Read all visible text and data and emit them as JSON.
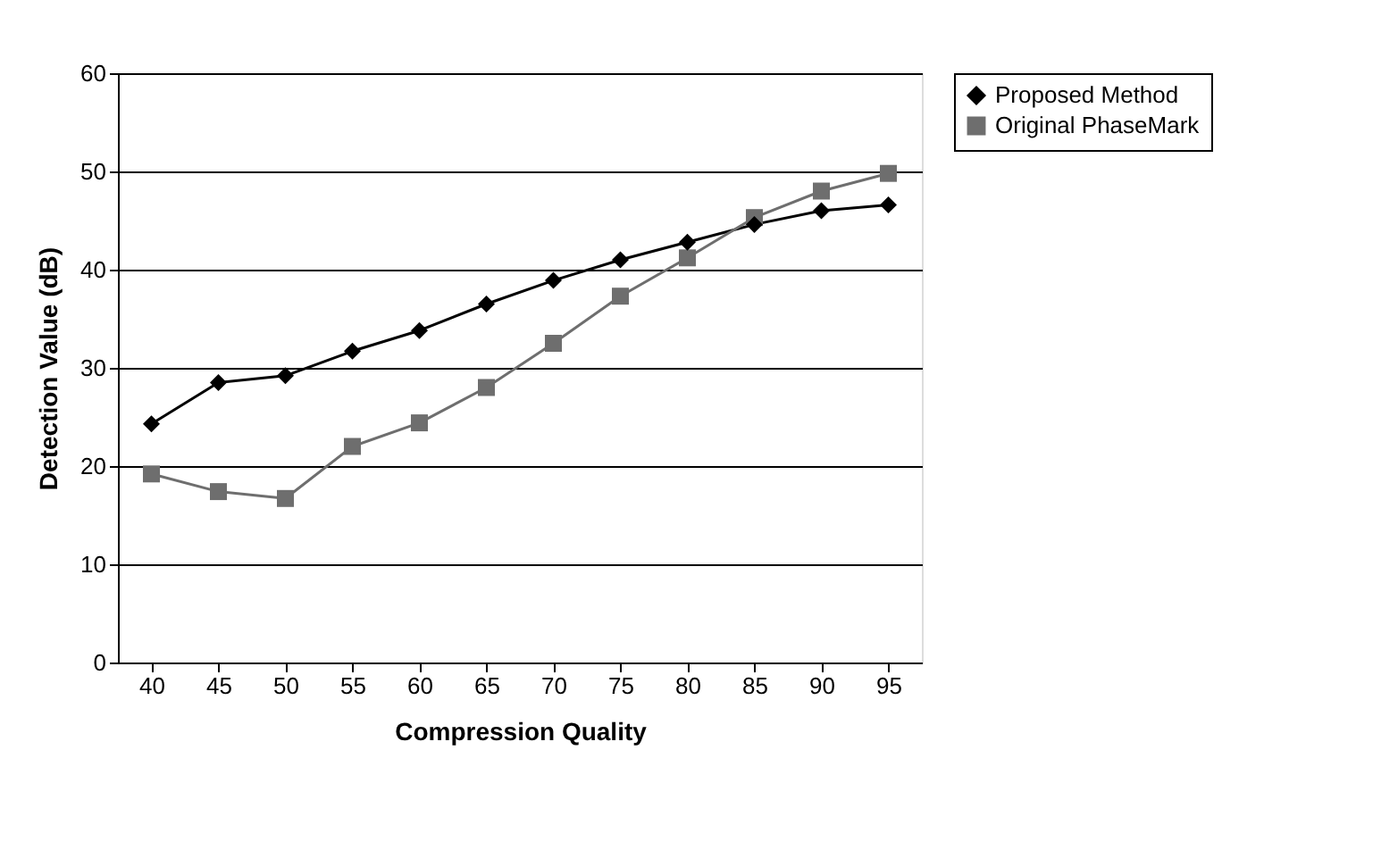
{
  "chart_data": {
    "type": "line",
    "xlabel": "Compression Quality",
    "ylabel": "Detection Value (dB)",
    "categories": [
      "40",
      "45",
      "50",
      "55",
      "60",
      "65",
      "70",
      "75",
      "80",
      "85",
      "90",
      "95"
    ],
    "series": [
      {
        "name": "Proposed Method",
        "color": "#000000",
        "marker": "diamond",
        "values": [
          24.3,
          28.5,
          29.2,
          31.7,
          33.8,
          36.5,
          38.9,
          41,
          42.8,
          44.6,
          46,
          46.6
        ]
      },
      {
        "name": "Original PhaseMark",
        "color": "#6e6e6e",
        "marker": "square",
        "values": [
          19.2,
          17.4,
          16.7,
          22,
          24.4,
          28,
          32.5,
          37.3,
          41.2,
          45.3,
          48,
          49.8
        ]
      }
    ],
    "ylim": [
      0,
      60
    ],
    "yticks": [
      0,
      10,
      20,
      30,
      40,
      50,
      60
    ],
    "grid": "y",
    "legend": "right",
    "line_style": "solid"
  }
}
